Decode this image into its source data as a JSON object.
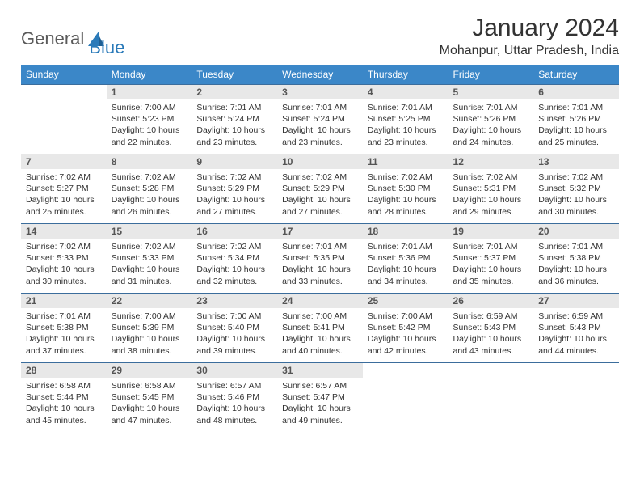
{
  "brand": {
    "part1": "General",
    "part2": "Blue"
  },
  "header": {
    "month_title": "January 2024",
    "location": "Mohanpur, Uttar Pradesh, India"
  },
  "calendar": {
    "header_bg": "#3b87c8",
    "header_fg": "#ffffff",
    "row_border": "#3b6d9c",
    "daynum_bg": "#e8e8e8",
    "days": [
      "Sunday",
      "Monday",
      "Tuesday",
      "Wednesday",
      "Thursday",
      "Friday",
      "Saturday"
    ],
    "weeks": [
      [
        {
          "n": "",
          "sunrise": "",
          "sunset": "",
          "daylight": ""
        },
        {
          "n": "1",
          "sunrise": "7:00 AM",
          "sunset": "5:23 PM",
          "daylight": "10 hours and 22 minutes."
        },
        {
          "n": "2",
          "sunrise": "7:01 AM",
          "sunset": "5:24 PM",
          "daylight": "10 hours and 23 minutes."
        },
        {
          "n": "3",
          "sunrise": "7:01 AM",
          "sunset": "5:24 PM",
          "daylight": "10 hours and 23 minutes."
        },
        {
          "n": "4",
          "sunrise": "7:01 AM",
          "sunset": "5:25 PM",
          "daylight": "10 hours and 23 minutes."
        },
        {
          "n": "5",
          "sunrise": "7:01 AM",
          "sunset": "5:26 PM",
          "daylight": "10 hours and 24 minutes."
        },
        {
          "n": "6",
          "sunrise": "7:01 AM",
          "sunset": "5:26 PM",
          "daylight": "10 hours and 25 minutes."
        }
      ],
      [
        {
          "n": "7",
          "sunrise": "7:02 AM",
          "sunset": "5:27 PM",
          "daylight": "10 hours and 25 minutes."
        },
        {
          "n": "8",
          "sunrise": "7:02 AM",
          "sunset": "5:28 PM",
          "daylight": "10 hours and 26 minutes."
        },
        {
          "n": "9",
          "sunrise": "7:02 AM",
          "sunset": "5:29 PM",
          "daylight": "10 hours and 27 minutes."
        },
        {
          "n": "10",
          "sunrise": "7:02 AM",
          "sunset": "5:29 PM",
          "daylight": "10 hours and 27 minutes."
        },
        {
          "n": "11",
          "sunrise": "7:02 AM",
          "sunset": "5:30 PM",
          "daylight": "10 hours and 28 minutes."
        },
        {
          "n": "12",
          "sunrise": "7:02 AM",
          "sunset": "5:31 PM",
          "daylight": "10 hours and 29 minutes."
        },
        {
          "n": "13",
          "sunrise": "7:02 AM",
          "sunset": "5:32 PM",
          "daylight": "10 hours and 30 minutes."
        }
      ],
      [
        {
          "n": "14",
          "sunrise": "7:02 AM",
          "sunset": "5:33 PM",
          "daylight": "10 hours and 30 minutes."
        },
        {
          "n": "15",
          "sunrise": "7:02 AM",
          "sunset": "5:33 PM",
          "daylight": "10 hours and 31 minutes."
        },
        {
          "n": "16",
          "sunrise": "7:02 AM",
          "sunset": "5:34 PM",
          "daylight": "10 hours and 32 minutes."
        },
        {
          "n": "17",
          "sunrise": "7:01 AM",
          "sunset": "5:35 PM",
          "daylight": "10 hours and 33 minutes."
        },
        {
          "n": "18",
          "sunrise": "7:01 AM",
          "sunset": "5:36 PM",
          "daylight": "10 hours and 34 minutes."
        },
        {
          "n": "19",
          "sunrise": "7:01 AM",
          "sunset": "5:37 PM",
          "daylight": "10 hours and 35 minutes."
        },
        {
          "n": "20",
          "sunrise": "7:01 AM",
          "sunset": "5:38 PM",
          "daylight": "10 hours and 36 minutes."
        }
      ],
      [
        {
          "n": "21",
          "sunrise": "7:01 AM",
          "sunset": "5:38 PM",
          "daylight": "10 hours and 37 minutes."
        },
        {
          "n": "22",
          "sunrise": "7:00 AM",
          "sunset": "5:39 PM",
          "daylight": "10 hours and 38 minutes."
        },
        {
          "n": "23",
          "sunrise": "7:00 AM",
          "sunset": "5:40 PM",
          "daylight": "10 hours and 39 minutes."
        },
        {
          "n": "24",
          "sunrise": "7:00 AM",
          "sunset": "5:41 PM",
          "daylight": "10 hours and 40 minutes."
        },
        {
          "n": "25",
          "sunrise": "7:00 AM",
          "sunset": "5:42 PM",
          "daylight": "10 hours and 42 minutes."
        },
        {
          "n": "26",
          "sunrise": "6:59 AM",
          "sunset": "5:43 PM",
          "daylight": "10 hours and 43 minutes."
        },
        {
          "n": "27",
          "sunrise": "6:59 AM",
          "sunset": "5:43 PM",
          "daylight": "10 hours and 44 minutes."
        }
      ],
      [
        {
          "n": "28",
          "sunrise": "6:58 AM",
          "sunset": "5:44 PM",
          "daylight": "10 hours and 45 minutes."
        },
        {
          "n": "29",
          "sunrise": "6:58 AM",
          "sunset": "5:45 PM",
          "daylight": "10 hours and 47 minutes."
        },
        {
          "n": "30",
          "sunrise": "6:57 AM",
          "sunset": "5:46 PM",
          "daylight": "10 hours and 48 minutes."
        },
        {
          "n": "31",
          "sunrise": "6:57 AM",
          "sunset": "5:47 PM",
          "daylight": "10 hours and 49 minutes."
        },
        {
          "n": "",
          "sunrise": "",
          "sunset": "",
          "daylight": ""
        },
        {
          "n": "",
          "sunrise": "",
          "sunset": "",
          "daylight": ""
        },
        {
          "n": "",
          "sunrise": "",
          "sunset": "",
          "daylight": ""
        }
      ]
    ],
    "labels": {
      "sunrise": "Sunrise:",
      "sunset": "Sunset:",
      "daylight": "Daylight:"
    }
  }
}
